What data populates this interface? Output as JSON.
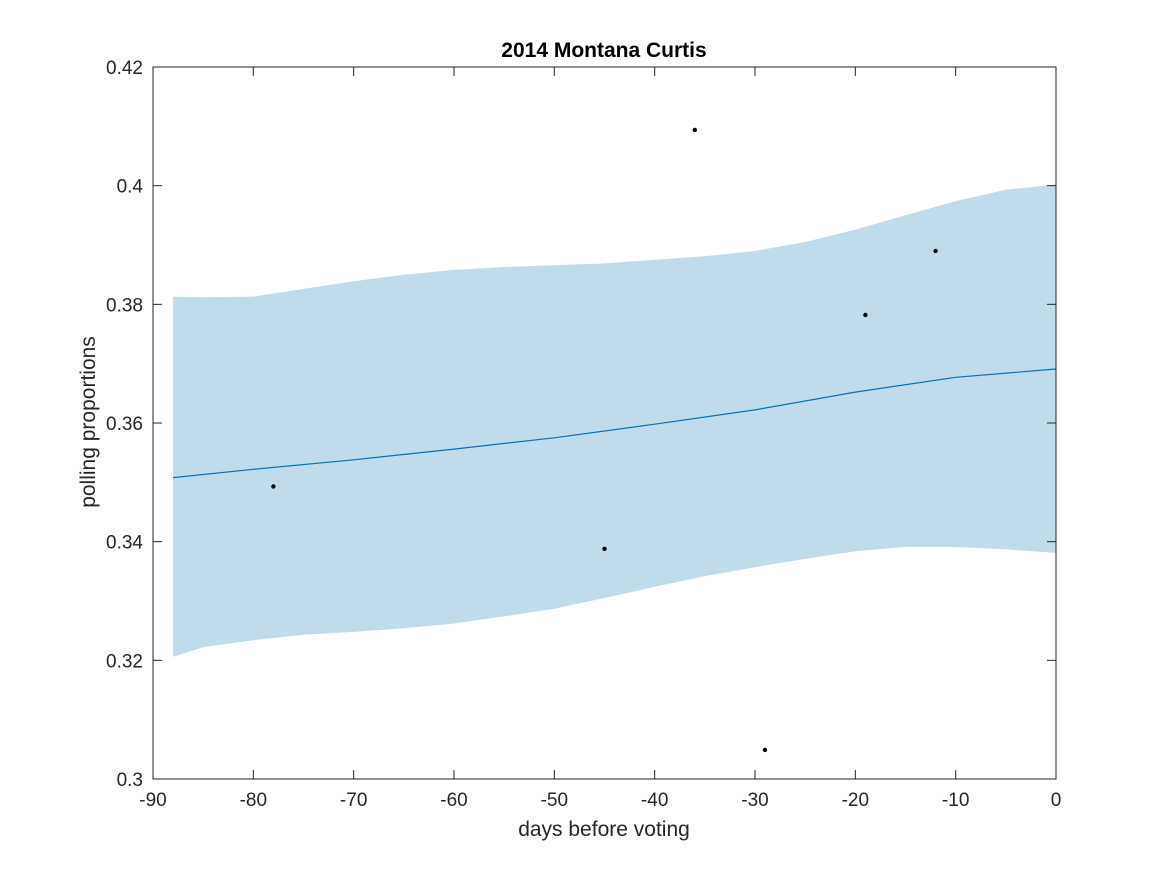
{
  "chart_data": {
    "type": "scatter",
    "title": "2014 Montana Curtis",
    "xlabel": "days before voting",
    "ylabel": "polling proportions",
    "xlim": [
      -90,
      0
    ],
    "ylim": [
      0.3,
      0.42
    ],
    "xticks": [
      -90,
      -80,
      -70,
      -60,
      -50,
      -40,
      -30,
      -20,
      -10,
      0
    ],
    "yticks": [
      0.3,
      0.32,
      0.34,
      0.36,
      0.38,
      0.4,
      0.42
    ],
    "xtick_labels": [
      "-90",
      "-80",
      "-70",
      "-60",
      "-50",
      "-40",
      "-30",
      "-20",
      "-10",
      "0"
    ],
    "ytick_labels": [
      "0.3",
      "0.32",
      "0.34",
      "0.36",
      "0.38",
      "0.4",
      "0.42"
    ],
    "grid": false,
    "colors": {
      "band": "#c0dcea",
      "trend": "#0072bd",
      "points": "#000000"
    },
    "points": [
      {
        "x": -78,
        "y": 0.3493
      },
      {
        "x": -45,
        "y": 0.3388
      },
      {
        "x": -36,
        "y": 0.4094
      },
      {
        "x": -29,
        "y": 0.3049
      },
      {
        "x": -19,
        "y": 0.3782
      },
      {
        "x": -12,
        "y": 0.389
      }
    ],
    "trend": {
      "x": [
        -88,
        -80,
        -70,
        -60,
        -50,
        -40,
        -30,
        -20,
        -10,
        0
      ],
      "y": [
        0.3508,
        0.3522,
        0.3538,
        0.3556,
        0.3575,
        0.3598,
        0.3622,
        0.3652,
        0.3677,
        0.3691
      ]
    },
    "band": {
      "x": [
        -88,
        -85,
        -80,
        -75,
        -70,
        -65,
        -60,
        -55,
        -50,
        -45,
        -40,
        -35,
        -30,
        -25,
        -20,
        -15,
        -10,
        -5,
        0
      ],
      "upper": [
        0.3813,
        0.3812,
        0.3813,
        0.3826,
        0.3839,
        0.385,
        0.3858,
        0.3863,
        0.3866,
        0.3869,
        0.3875,
        0.3881,
        0.389,
        0.3905,
        0.3926,
        0.395,
        0.3974,
        0.3993,
        0.4002
      ],
      "lower": [
        0.3206,
        0.3222,
        0.3234,
        0.3243,
        0.3248,
        0.3254,
        0.3262,
        0.3274,
        0.3287,
        0.3305,
        0.3324,
        0.3342,
        0.3357,
        0.3371,
        0.3384,
        0.3391,
        0.3391,
        0.3387,
        0.3381
      ]
    }
  }
}
